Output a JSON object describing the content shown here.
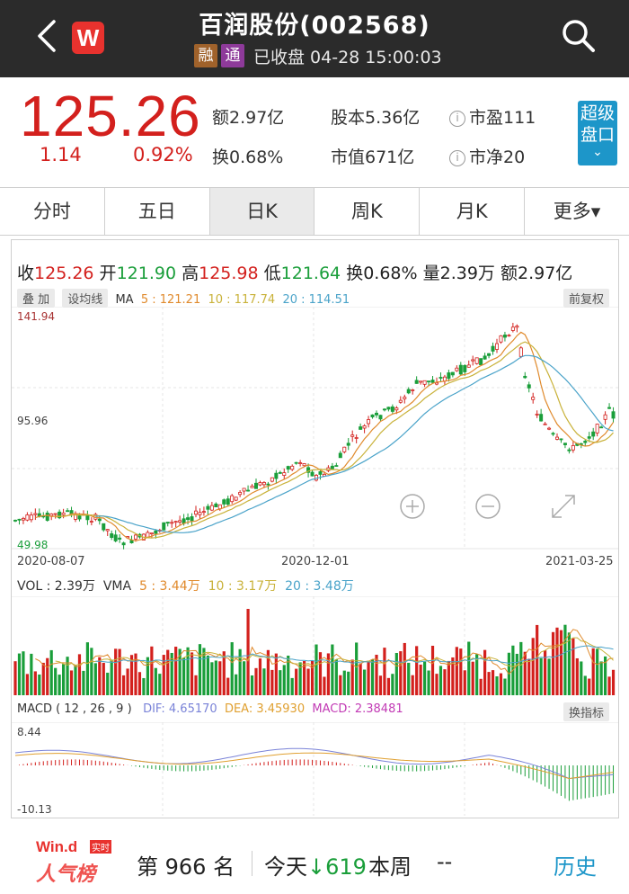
{
  "header": {
    "logo": "W",
    "title": "百润股份(002568)",
    "tag_rong": "融",
    "tag_tong": "通",
    "status": "已收盘 04-28 15:00:03"
  },
  "quote": {
    "price": "125.26",
    "change": "1.14",
    "change_pct": "0.92%",
    "turnover_amount": "额2.97亿",
    "turnover_rate": "换0.68%",
    "share_capital": "股本5.36亿",
    "market_cap": "市值671亿",
    "pe": "市盈111",
    "pb": "市净20",
    "super_button_line1": "超级",
    "super_button_line2": "盘口",
    "price_color": "#d3201d"
  },
  "tabs": [
    {
      "label": "分时",
      "active": false
    },
    {
      "label": "五日",
      "active": false
    },
    {
      "label": "日K",
      "active": true
    },
    {
      "label": "周K",
      "active": false
    },
    {
      "label": "月K",
      "active": false
    },
    {
      "label": "更多▾",
      "active": false
    }
  ],
  "kline": {
    "close_label": "收",
    "close": "125.26",
    "open_label": "开",
    "open": "121.90",
    "high_label": "高",
    "high": "125.98",
    "low_label": "低",
    "low": "121.64",
    "turn_label": "换",
    "turn": "0.68%",
    "vol_label": "量",
    "vol": "2.39万",
    "amt_label": "额",
    "amt": "2.97亿",
    "overlay_button": "叠 加",
    "ma_setting_button": "设均线",
    "ma_label": "MA",
    "ma5": "5 : 121.21",
    "ma10": "10 : 117.74",
    "ma20": "20 : 114.51",
    "adjust_button": "前复权",
    "y_max": "141.94",
    "y_mid": "95.96",
    "y_min": "49.98",
    "dates": [
      "2020-08-07",
      "2020-12-01",
      "2021-03-25"
    ]
  },
  "volume": {
    "vol_text": "VOL : 2.39万",
    "vma_label": "VMA",
    "vma5": "5 : 3.44万",
    "vma10": "10 : 3.17万",
    "vma20": "20 : 3.48万"
  },
  "macd": {
    "title": "MACD ( 12 , 26 , 9 )",
    "dif": "DIF: 4.65170",
    "dea": "DEA: 3.45930",
    "macd": "MACD: 2.38481",
    "indicator_button": "换指标",
    "y_max": "8.44",
    "y_min": "-10.13"
  },
  "colors": {
    "up": "#d3201d",
    "down": "#1a9e3a",
    "ma5": "#e08a2c",
    "ma10": "#c9b23a",
    "ma20": "#4aa3c9",
    "dif": "#7a83d8",
    "dea": "#e0a030",
    "macd": "#c23bb5"
  },
  "footer": {
    "brand": "Win.d",
    "badge": "实时",
    "brand_sub": "人气榜",
    "rank_prefix": "第",
    "rank": "966",
    "rank_suffix": "名",
    "today_label": "今天",
    "today_change": "↓619",
    "week_label": "本周",
    "week_value": "--",
    "history": "历史"
  },
  "icons": [
    "back-icon",
    "search-icon",
    "info-icon",
    "chevron-down-icon",
    "zoom-in-icon",
    "zoom-out-icon",
    "expand-icon"
  ]
}
